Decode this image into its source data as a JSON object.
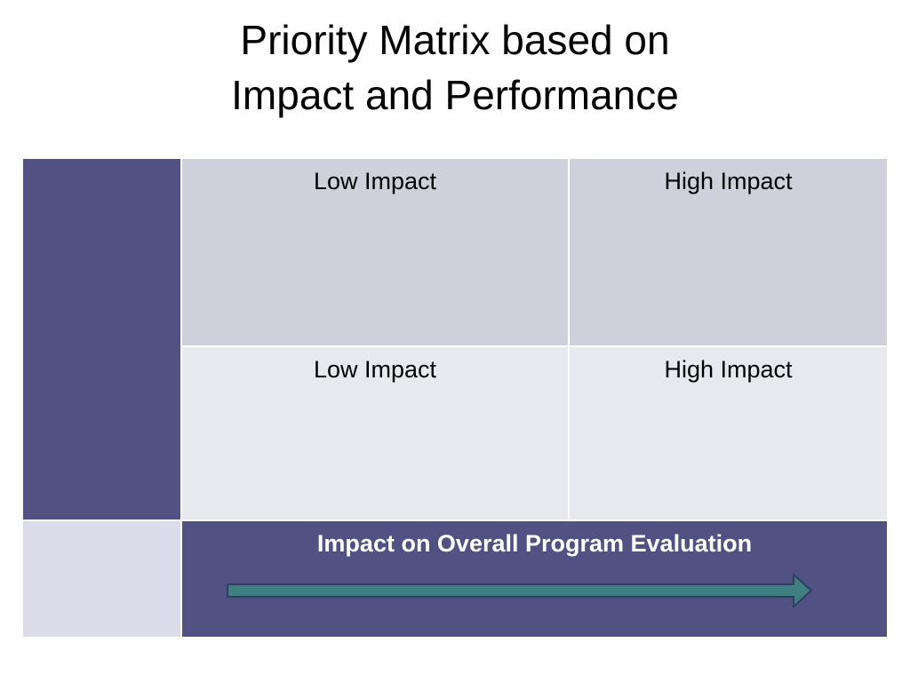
{
  "title": {
    "line1": "Priority Matrix based on",
    "line2": "Impact and Performance"
  },
  "matrix": {
    "rows": [
      {
        "cells": [
          "Low Impact",
          "High Impact"
        ]
      },
      {
        "cells": [
          "Low Impact",
          "High Impact"
        ]
      }
    ],
    "footer_label": "Impact on Overall Program Evaluation"
  },
  "colors": {
    "side_bar": "#525183",
    "footer_band": "#525183",
    "corner": "#dcdbe9",
    "top_row": "#d0d0dc",
    "bottom_row": "#e8e8ef",
    "arrow_fill": "#3f7f82",
    "arrow_stroke": "#2f3f5f"
  }
}
